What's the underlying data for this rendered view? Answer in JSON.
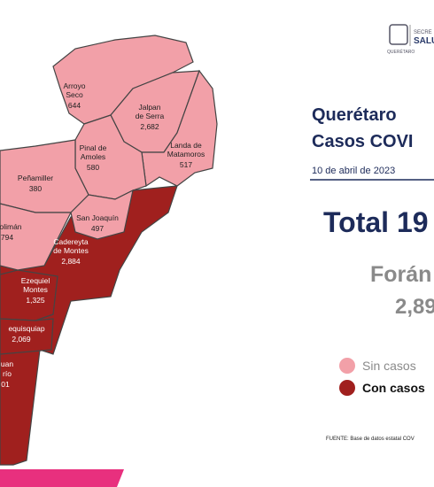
{
  "header": {
    "logo_line1": "SECRE",
    "logo_line2": "SALU",
    "logo_line3": "QUERÉTARO"
  },
  "title": {
    "line1": "Querétaro",
    "line2": "Casos COVI",
    "date": "10 de abril de 2023"
  },
  "total": "Total 19",
  "foraneos": {
    "label": "Forán",
    "value": "2,89"
  },
  "legend": [
    {
      "label": "Sin casos",
      "color": "#f2a0a8"
    },
    {
      "label": "Con casos",
      "color": "#a0201e"
    }
  ],
  "source": "FUENTE: Base de datos estatal COV",
  "map": {
    "regions": [
      {
        "name": [
          "Arroyo",
          "Seco"
        ],
        "cases": "644"
      },
      {
        "name": [
          "Jalpan",
          "de Serra"
        ],
        "cases": "2,682"
      },
      {
        "name": [
          "Landa de",
          "Matamoros"
        ],
        "cases": "517"
      },
      {
        "name": [
          "Pinal de",
          "Amoles"
        ],
        "cases": "580"
      },
      {
        "name": [
          "Peñamiller"
        ],
        "cases": "380"
      },
      {
        "name": [
          "olimán"
        ],
        "cases": "794"
      },
      {
        "name": [
          "San Joaquín"
        ],
        "cases": "497"
      },
      {
        "name": [
          "Cadereyta",
          "de Montes"
        ],
        "cases": "2,884"
      },
      {
        "name": [
          "Ezequiel",
          "Montes"
        ],
        "cases": "1,325"
      },
      {
        "name": [
          "equisquiap"
        ],
        "cases": "2,069"
      },
      {
        "name": [
          "uan",
          "río"
        ],
        "cases": "01"
      }
    ]
  }
}
